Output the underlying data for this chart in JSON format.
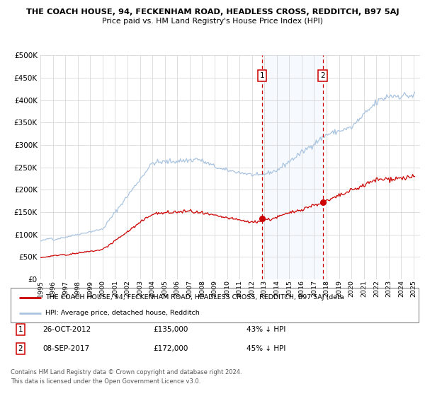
{
  "title": "THE COACH HOUSE, 94, FECKENHAM ROAD, HEADLESS CROSS, REDDITCH, B97 5AJ",
  "subtitle": "Price paid vs. HM Land Registry's House Price Index (HPI)",
  "legend_line1": "THE COACH HOUSE, 94, FECKENHAM ROAD, HEADLESS CROSS, REDDITCH, B97 5AJ (deta",
  "legend_line2": "HPI: Average price, detached house, Redditch",
  "footnote1": "Contains HM Land Registry data © Crown copyright and database right 2024.",
  "footnote2": "This data is licensed under the Open Government Licence v3.0.",
  "sale1_date": "26-OCT-2012",
  "sale1_price": 135000,
  "sale1_label": "43% ↓ HPI",
  "sale2_date": "08-SEP-2017",
  "sale2_price": 172000,
  "sale2_label": "45% ↓ HPI",
  "hpi_color": "#aac4e0",
  "price_color": "#cc0000",
  "vline_color": "#cc0000",
  "shade_color": "#ddeeff",
  "ylim": [
    0,
    500000
  ],
  "yticks": [
    0,
    50000,
    100000,
    150000,
    200000,
    250000,
    300000,
    350000,
    400000,
    450000,
    500000
  ],
  "sale1_t": 2012.82,
  "sale2_t": 2017.69
}
